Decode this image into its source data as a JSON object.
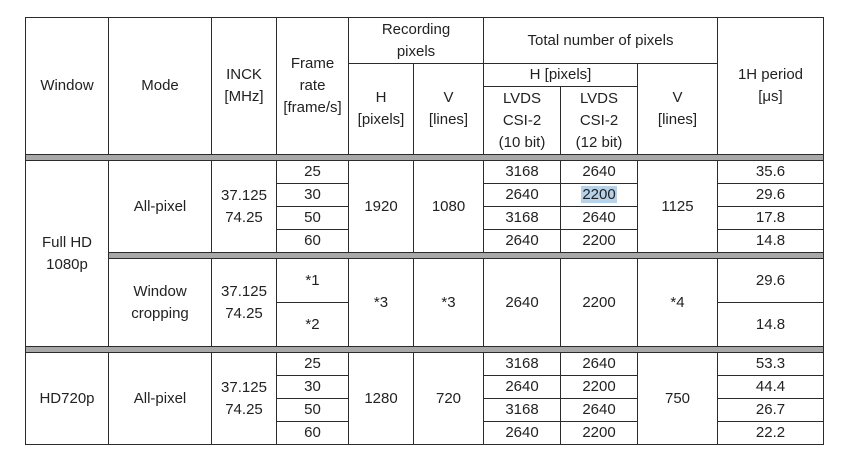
{
  "headers": {
    "window": "Window",
    "mode": "Mode",
    "inck": "INCK\n[MHz]",
    "frame_rate": "Frame\nrate\n[frame/s]",
    "recording_pixels": "Recording\npixels",
    "rec_h": "H\n[pixels]",
    "rec_v": "V\n[lines]",
    "total_pixels": "Total number of pixels",
    "total_h": "H [pixels]",
    "lvds10": "LVDS\nCSI-2\n(10 bit)",
    "lvds12": "LVDS\nCSI-2\n(12 bit)",
    "total_v": "V\n[lines]",
    "period": "1H period\n[μs]"
  },
  "full_hd": {
    "window": "Full HD\n1080p",
    "all_pixel": {
      "mode": "All-pixel",
      "inck": "37.125\n74.25",
      "rec_h": "1920",
      "rec_v": "1080",
      "total_v": "1125",
      "rows": [
        {
          "fr": "25",
          "h10": "3168",
          "h12": "2640",
          "period": "35.6"
        },
        {
          "fr": "30",
          "h10": "2640",
          "h12": "2200",
          "period": "29.6"
        },
        {
          "fr": "50",
          "h10": "3168",
          "h12": "2640",
          "period": "17.8"
        },
        {
          "fr": "60",
          "h10": "2640",
          "h12": "2200",
          "period": "14.8"
        }
      ]
    },
    "cropping": {
      "mode": "Window\ncropping",
      "inck": "37.125\n74.25",
      "fr1": "*1",
      "fr2": "*2",
      "rec_h": "*3",
      "rec_v": "*3",
      "h10": "2640",
      "h12": "2200",
      "total_v": "*4",
      "period1": "29.6",
      "period2": "14.8"
    }
  },
  "hd720": {
    "window": "HD720p",
    "mode": "All-pixel",
    "inck": "37.125\n74.25",
    "rec_h": "1280",
    "rec_v": "720",
    "total_v": "750",
    "rows": [
      {
        "fr": "25",
        "h10": "3168",
        "h12": "2640",
        "period": "53.3"
      },
      {
        "fr": "30",
        "h10": "2640",
        "h12": "2200",
        "period": "44.4"
      },
      {
        "fr": "50",
        "h10": "3168",
        "h12": "2640",
        "period": "26.7"
      },
      {
        "fr": "60",
        "h10": "2640",
        "h12": "2200",
        "period": "22.2"
      }
    ]
  },
  "highlight_color": "#b7d3e9"
}
